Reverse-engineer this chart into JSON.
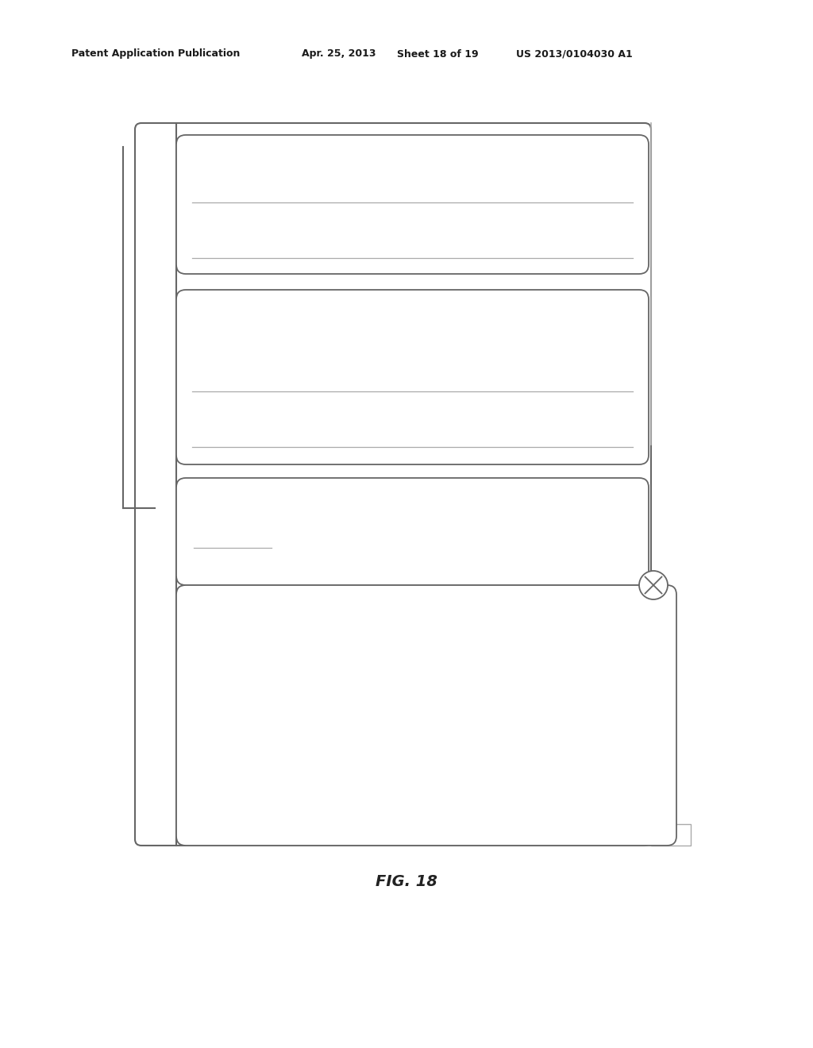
{
  "bg_color": "#ffffff",
  "header_text": "Patent Application Publication",
  "header_date": "Apr. 25, 2013",
  "header_sheet": "Sheet 18 of 19",
  "header_patent": "US 2013/0104030 A1",
  "fig_label": "FIG. 18",
  "font_family": "DejaVu Sans"
}
